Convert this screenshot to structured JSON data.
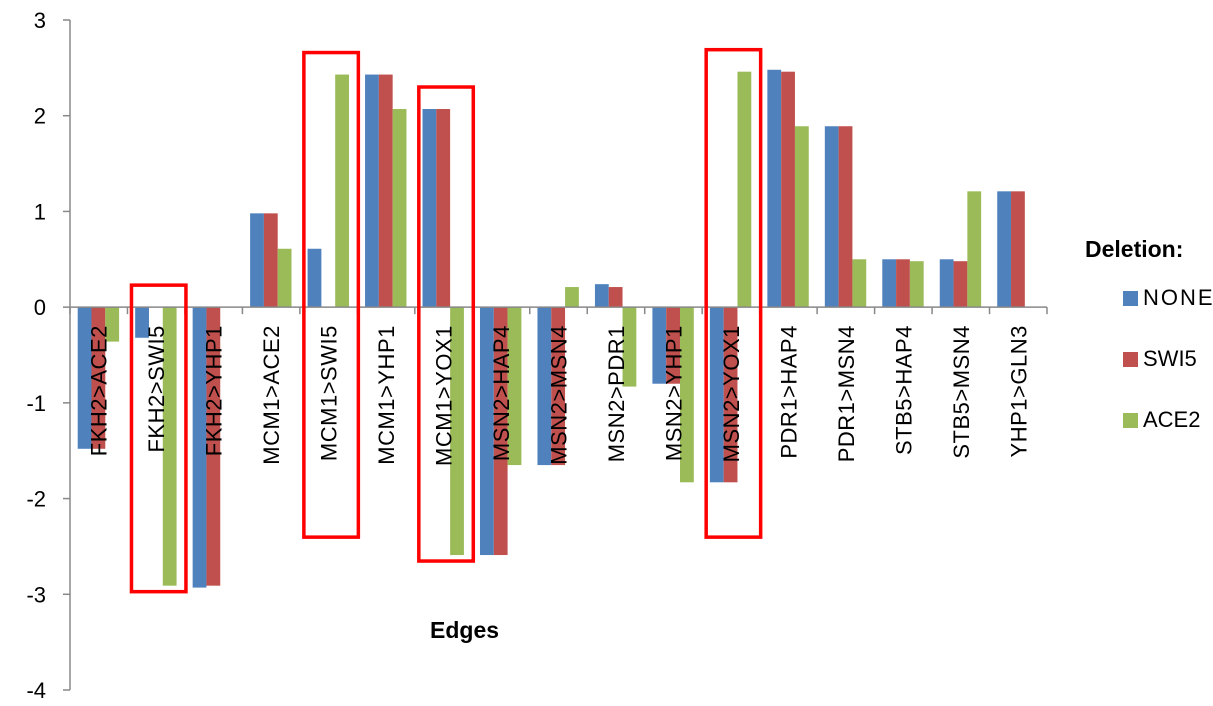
{
  "chart_data": {
    "type": "bar",
    "xlabel": "Edges",
    "ylabel": "",
    "ylim": [
      -4,
      3
    ],
    "yticks": [
      3,
      2,
      1,
      0,
      -1,
      -2,
      -3,
      -4
    ],
    "categories": [
      "FKH2>ACE2",
      "FKH2>SWI5",
      "FKH2>YHP1",
      "MCM1>ACE2",
      "MCM1>SWI5",
      "MCM1>YHP1",
      "MCM1>YOX1",
      "MSN2>HAP4",
      "MSN2>MSN4",
      "MSN2>PDR1",
      "MSN2>YHP1",
      "MSN2>YOX1",
      "PDR1>HAP4",
      "PDR1>MSN4",
      "STB5>HAP4",
      "STB5>MSN4",
      "YHP1>GLN3"
    ],
    "series": [
      {
        "name": "NONE",
        "color": "#4f81bd",
        "values": [
          -1.48,
          -0.32,
          -2.93,
          0.98,
          0.61,
          2.43,
          2.07,
          -2.59,
          -1.65,
          0.24,
          -0.8,
          -1.83,
          2.48,
          1.89,
          0.5,
          0.5,
          1.21
        ]
      },
      {
        "name": "SWI5",
        "color": "#c0504d",
        "values": [
          -1.48,
          0,
          -2.91,
          0.98,
          0,
          2.43,
          2.07,
          -2.59,
          -1.65,
          0.21,
          -0.8,
          -1.83,
          2.46,
          1.89,
          0.5,
          0.48,
          1.21
        ]
      },
      {
        "name": "ACE2",
        "color": "#9bbb59",
        "values": [
          -0.36,
          -2.91,
          0,
          0.61,
          2.43,
          2.07,
          -2.59,
          -1.65,
          0.21,
          -0.83,
          -1.83,
          2.46,
          1.89,
          0.5,
          0.48,
          1.21,
          0
        ]
      }
    ],
    "highlighted_categories": [
      "FKH2>SWI5",
      "MCM1>SWI5",
      "MCM1>YOX1",
      "MSN2>YOX1"
    ],
    "highlight_color": "#ff0000",
    "legend_title": "Deletion:",
    "legend_position": "right",
    "grid": false
  }
}
